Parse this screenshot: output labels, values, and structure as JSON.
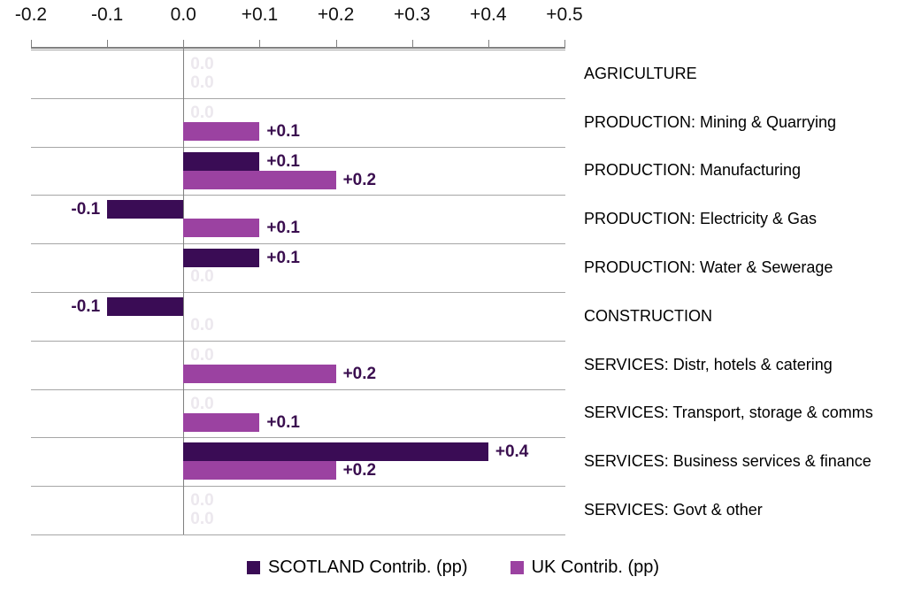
{
  "colors": {
    "scotland": "#3A0C55",
    "uk": "#9B42A1",
    "value_label": "#3A0E4F",
    "zero_label": "#ECE8EE",
    "gridline": "#A6A6A6",
    "axis": "#808080"
  },
  "chart_data": {
    "type": "bar",
    "orientation": "horizontal",
    "title": "",
    "xlabel": "",
    "ylabel": "",
    "xlim": [
      -0.2,
      0.5
    ],
    "grid": "row-separators",
    "legend_position": "bottom",
    "x_ticks": [
      {
        "label": "-0.2",
        "value": -0.2
      },
      {
        "label": "-0.1",
        "value": -0.1
      },
      {
        "label": "0.0",
        "value": 0.0
      },
      {
        "label": "+0.1",
        "value": 0.1
      },
      {
        "label": "+0.2",
        "value": 0.2
      },
      {
        "label": "+0.3",
        "value": 0.3
      },
      {
        "label": "+0.4",
        "value": 0.4
      },
      {
        "label": "+0.5",
        "value": 0.5
      }
    ],
    "categories": [
      "AGRICULTURE",
      "PRODUCTION: Mining & Quarrying",
      "PRODUCTION: Manufacturing",
      "PRODUCTION: Electricity & Gas",
      "PRODUCTION: Water & Sewerage",
      "CONSTRUCTION",
      "SERVICES: Distr, hotels & catering",
      "SERVICES: Transport, storage & comms",
      "SERVICES: Business services & finance",
      "SERVICES: Govt & other"
    ],
    "series": [
      {
        "name": "SCOTLAND Contrib. (pp)",
        "values": [
          0.0,
          0.0,
          0.1,
          -0.1,
          0.1,
          -0.1,
          0.0,
          0.0,
          0.4,
          0.0
        ],
        "labels": [
          "0.0",
          "0.0",
          "+0.1",
          "-0.1",
          "+0.1",
          "-0.1",
          "0.0",
          "0.0",
          "+0.4",
          "0.0"
        ]
      },
      {
        "name": "UK Contrib. (pp)",
        "values": [
          0.0,
          0.1,
          0.2,
          0.1,
          0.0,
          0.0,
          0.2,
          0.1,
          0.2,
          0.0
        ],
        "labels": [
          "0.0",
          "+0.1",
          "+0.2",
          "+0.1",
          "0.0",
          "0.0",
          "+0.2",
          "+0.1",
          "+0.2",
          "0.0"
        ]
      }
    ]
  }
}
